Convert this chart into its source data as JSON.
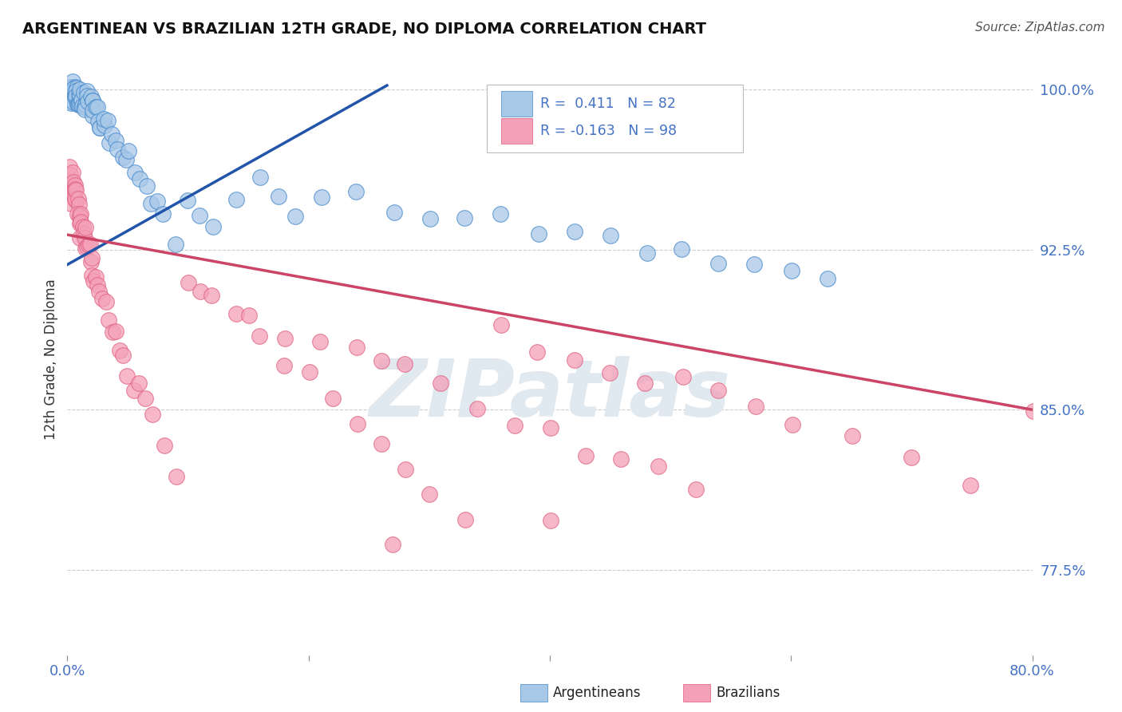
{
  "title": "ARGENTINEAN VS BRAZILIAN 12TH GRADE, NO DIPLOMA CORRELATION CHART",
  "source": "Source: ZipAtlas.com",
  "ylabel": "12th Grade, No Diploma",
  "xlim": [
    0.0,
    0.8
  ],
  "ylim": [
    0.735,
    1.012
  ],
  "xticks": [
    0.0,
    0.2,
    0.4,
    0.6,
    0.8
  ],
  "xticklabels": [
    "0.0%",
    "",
    "",
    "",
    "80.0%"
  ],
  "yticks": [
    0.775,
    0.85,
    0.925,
    1.0
  ],
  "yticklabels": [
    "77.5%",
    "85.0%",
    "92.5%",
    "100.0%"
  ],
  "blue_R": 0.411,
  "blue_N": 82,
  "pink_R": -0.163,
  "pink_N": 98,
  "blue_color": "#a8c8e8",
  "pink_color": "#f4a0b8",
  "blue_edge_color": "#4488cc",
  "pink_edge_color": "#e06080",
  "blue_line_color": "#2255aa",
  "pink_line_color": "#cc4466",
  "grid_color": "#cccccc",
  "bg_color": "#ffffff",
  "watermark": "ZIPatlas",
  "legend_label_blue": "Argentineans",
  "legend_label_pink": "Brazilians",
  "blue_trend_x": [
    0.0,
    0.265
  ],
  "blue_trend_y": [
    0.918,
    1.002
  ],
  "pink_trend_x": [
    0.0,
    0.8
  ],
  "pink_trend_y": [
    0.932,
    0.85
  ],
  "blue_scatter_x": [
    0.001,
    0.002,
    0.003,
    0.003,
    0.004,
    0.004,
    0.005,
    0.005,
    0.005,
    0.006,
    0.006,
    0.007,
    0.007,
    0.007,
    0.008,
    0.008,
    0.009,
    0.009,
    0.01,
    0.01,
    0.01,
    0.011,
    0.011,
    0.012,
    0.012,
    0.013,
    0.013,
    0.014,
    0.015,
    0.015,
    0.016,
    0.017,
    0.018,
    0.019,
    0.02,
    0.02,
    0.021,
    0.022,
    0.023,
    0.025,
    0.026,
    0.027,
    0.028,
    0.03,
    0.031,
    0.033,
    0.035,
    0.037,
    0.04,
    0.042,
    0.045,
    0.048,
    0.05,
    0.055,
    0.06,
    0.065,
    0.07,
    0.075,
    0.08,
    0.09,
    0.1,
    0.11,
    0.12,
    0.14,
    0.16,
    0.175,
    0.19,
    0.21,
    0.24,
    0.27,
    0.3,
    0.33,
    0.36,
    0.39,
    0.42,
    0.45,
    0.48,
    0.51,
    0.54,
    0.57,
    0.6,
    0.63
  ],
  "blue_scatter_y": [
    0.997,
    0.998,
    0.999,
    1.0,
    0.999,
    1.0,
    1.0,
    0.999,
    0.998,
    0.999,
    0.998,
    0.999,
    0.998,
    0.997,
    0.999,
    0.998,
    0.998,
    0.997,
    0.998,
    0.997,
    0.996,
    0.997,
    0.996,
    0.997,
    0.996,
    0.996,
    0.995,
    0.996,
    0.995,
    0.994,
    0.995,
    0.994,
    0.993,
    0.993,
    0.992,
    0.991,
    0.991,
    0.99,
    0.989,
    0.988,
    0.987,
    0.986,
    0.985,
    0.984,
    0.983,
    0.982,
    0.98,
    0.979,
    0.977,
    0.975,
    0.972,
    0.969,
    0.967,
    0.963,
    0.958,
    0.953,
    0.948,
    0.943,
    0.937,
    0.93,
    0.948,
    0.943,
    0.938,
    0.953,
    0.958,
    0.95,
    0.945,
    0.952,
    0.948,
    0.945,
    0.943,
    0.94,
    0.937,
    0.935,
    0.932,
    0.929,
    0.926,
    0.923,
    0.92,
    0.917,
    0.914,
    0.911
  ],
  "pink_scatter_x": [
    0.001,
    0.001,
    0.002,
    0.002,
    0.003,
    0.003,
    0.003,
    0.004,
    0.004,
    0.005,
    0.005,
    0.005,
    0.006,
    0.006,
    0.006,
    0.007,
    0.007,
    0.008,
    0.008,
    0.009,
    0.009,
    0.01,
    0.01,
    0.01,
    0.011,
    0.011,
    0.012,
    0.012,
    0.013,
    0.014,
    0.015,
    0.015,
    0.016,
    0.017,
    0.018,
    0.019,
    0.02,
    0.021,
    0.022,
    0.023,
    0.025,
    0.027,
    0.03,
    0.032,
    0.035,
    0.038,
    0.04,
    0.043,
    0.046,
    0.05,
    0.055,
    0.06,
    0.065,
    0.07,
    0.08,
    0.09,
    0.1,
    0.11,
    0.12,
    0.14,
    0.16,
    0.18,
    0.2,
    0.22,
    0.24,
    0.26,
    0.28,
    0.3,
    0.33,
    0.36,
    0.39,
    0.42,
    0.45,
    0.48,
    0.51,
    0.54,
    0.57,
    0.6,
    0.65,
    0.7,
    0.75,
    0.8,
    0.27,
    0.4,
    0.15,
    0.18,
    0.21,
    0.24,
    0.26,
    0.28,
    0.31,
    0.34,
    0.37,
    0.4,
    0.43,
    0.46,
    0.49,
    0.52
  ],
  "pink_scatter_y": [
    0.96,
    0.955,
    0.96,
    0.955,
    0.958,
    0.953,
    0.948,
    0.958,
    0.953,
    0.958,
    0.953,
    0.948,
    0.955,
    0.95,
    0.945,
    0.952,
    0.947,
    0.95,
    0.945,
    0.948,
    0.943,
    0.945,
    0.94,
    0.935,
    0.942,
    0.937,
    0.94,
    0.935,
    0.937,
    0.935,
    0.932,
    0.927,
    0.93,
    0.927,
    0.925,
    0.922,
    0.92,
    0.917,
    0.915,
    0.912,
    0.908,
    0.904,
    0.9,
    0.896,
    0.892,
    0.888,
    0.884,
    0.88,
    0.876,
    0.87,
    0.864,
    0.858,
    0.852,
    0.846,
    0.834,
    0.822,
    0.913,
    0.908,
    0.903,
    0.893,
    0.883,
    0.873,
    0.863,
    0.853,
    0.843,
    0.833,
    0.823,
    0.813,
    0.8,
    0.887,
    0.882,
    0.877,
    0.872,
    0.867,
    0.862,
    0.857,
    0.852,
    0.847,
    0.838,
    0.828,
    0.818,
    0.85,
    0.788,
    0.797,
    0.893,
    0.888,
    0.883,
    0.878,
    0.873,
    0.868,
    0.861,
    0.854,
    0.847,
    0.84,
    0.833,
    0.826,
    0.819,
    0.812
  ]
}
